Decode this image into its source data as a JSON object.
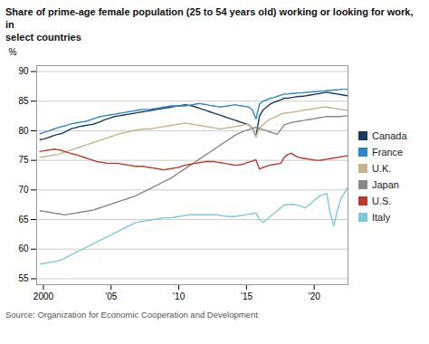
{
  "chart_data": {
    "type": "line",
    "title": "Share of prime-age female population (25 to 54 years old) working or looking for work, in\nselect countries",
    "source": "Source: Organization for Economic Cooperation and Development",
    "ylabel": "%",
    "xlim": [
      1999.5,
      2022.5
    ],
    "ylim": [
      54,
      91
    ],
    "xticks": [
      2000,
      {
        "value": 2005,
        "label": "’05"
      },
      {
        "value": 2010,
        "label": "’10"
      },
      {
        "value": 2015,
        "label": "’15"
      },
      {
        "value": 2020,
        "label": "’20"
      }
    ],
    "yticks": [
      55,
      60,
      65,
      70,
      75,
      80,
      85,
      90
    ],
    "grid": true,
    "legend": "right",
    "x": [
      1999.75,
      2000.0115,
      2000.273,
      2000.5345,
      2000.796,
      2001.0575,
      2001.319,
      2001.5805,
      2001.842,
      2002.1034,
      2002.3649,
      2002.6264,
      2002.8879,
      2003.1494,
      2003.4109,
      2003.6724,
      2003.9339,
      2004.1954,
      2004.4569,
      2004.7184,
      2004.9799,
      2005.2414,
      2005.5029,
      2005.7644,
      2006.0259,
      2006.2874,
      2006.5489,
      2006.8103,
      2007.0718,
      2007.3333,
      2007.5948,
      2007.8563,
      2008.1178,
      2008.3793,
      2008.6408,
      2008.9023,
      2009.1638,
      2009.4253,
      2009.6868,
      2009.9483,
      2010.2098,
      2010.4713,
      2010.7328,
      2010.9943,
      2011.2557,
      2011.5172,
      2011.7787,
      2012.0402,
      2012.3017,
      2012.5632,
      2012.8247,
      2013.0862,
      2013.3477,
      2013.6092,
      2013.8707,
      2014.1322,
      2014.3937,
      2014.6552,
      2014.9167,
      2015.1782,
      2015.4397,
      2015.7011,
      2015.9626,
      2016.2241,
      2016.4856,
      2016.7471,
      2017.0086,
      2017.2701,
      2017.5316,
      2017.7931,
      2018.0546,
      2018.3161,
      2018.5776,
      2018.8391,
      2019.1006,
      2019.3621,
      2019.6236,
      2019.8851,
      2020.1466,
      2020.408,
      2020.6695,
      2020.931,
      2021.1925,
      2021.454,
      2021.7155,
      2021.977,
      2022.2385,
      2022.5
    ],
    "series": [
      {
        "name": "Canada",
        "color": "#1a3a5c",
        "values": [
          78.5,
          78.6,
          78.8,
          79.0,
          79.2,
          79.4,
          79.5,
          79.8,
          80.1,
          80.4,
          80.5,
          80.7,
          80.8,
          80.9,
          81.0,
          81.1,
          81.3,
          81.5,
          81.8,
          82.0,
          82.2,
          82.4,
          82.5,
          82.6,
          82.7,
          82.8,
          82.9,
          83.0,
          83.1,
          83.2,
          83.3,
          83.4,
          83.5,
          83.6,
          83.7,
          83.8,
          83.9,
          84.0,
          84.1,
          84.2,
          84.3,
          84.4,
          84.3,
          84.2,
          84.0,
          83.8,
          83.6,
          83.4,
          83.2,
          83.0,
          82.8,
          82.6,
          82.4,
          82.2,
          82.0,
          81.8,
          81.6,
          81.4,
          81.2,
          81.0,
          80.5,
          79.0,
          82.5,
          83.5,
          84.0,
          84.5,
          84.8,
          85.0,
          85.2,
          85.5,
          85.5,
          85.6,
          85.7,
          85.8,
          85.8,
          85.9,
          86.0,
          86.1,
          86.2,
          86.3,
          86.4,
          86.5,
          86.4,
          86.3,
          86.2,
          86.1,
          86.0,
          85.9
        ]
      },
      {
        "name": "France",
        "color": "#2e86c8",
        "values": [
          79.5,
          79.7,
          79.9,
          80.1,
          80.3,
          80.5,
          80.7,
          80.8,
          81.0,
          81.2,
          81.3,
          81.4,
          81.5,
          81.6,
          81.8,
          82.0,
          82.2,
          82.4,
          82.5,
          82.6,
          82.7,
          82.8,
          82.9,
          83.0,
          83.1,
          83.2,
          83.3,
          83.4,
          83.5,
          83.6,
          83.6,
          83.6,
          83.7,
          83.8,
          83.9,
          84.0,
          84.1,
          84.2,
          84.2,
          84.2,
          84.2,
          84.2,
          84.3,
          84.4,
          84.5,
          84.6,
          84.5,
          84.4,
          84.3,
          84.2,
          84.1,
          84.0,
          84.1,
          84.2,
          84.3,
          84.4,
          84.3,
          84.2,
          84.1,
          84.0,
          83.5,
          82.0,
          84.5,
          85.0,
          85.2,
          85.5,
          85.6,
          85.8,
          86.0,
          86.2,
          86.2,
          86.3,
          86.3,
          86.4,
          86.4,
          86.5,
          86.5,
          86.6,
          86.6,
          86.7,
          86.7,
          86.8,
          86.8,
          86.9,
          86.9,
          87.0,
          87.0,
          87.0
        ]
      },
      {
        "name": "U.K.",
        "color": "#c8b48a",
        "values": [
          75.5,
          75.6,
          75.7,
          75.8,
          75.9,
          76.0,
          76.2,
          76.4,
          76.6,
          76.8,
          77.0,
          77.2,
          77.4,
          77.6,
          77.8,
          78.0,
          78.2,
          78.4,
          78.6,
          78.8,
          79.0,
          79.2,
          79.4,
          79.6,
          79.7,
          79.8,
          80.0,
          80.1,
          80.2,
          80.3,
          80.3,
          80.3,
          80.4,
          80.5,
          80.6,
          80.7,
          80.8,
          80.9,
          81.0,
          81.1,
          81.2,
          81.3,
          81.2,
          81.1,
          81.0,
          80.9,
          80.8,
          80.7,
          80.6,
          80.5,
          80.4,
          80.3,
          80.4,
          80.5,
          80.6,
          80.7,
          80.8,
          80.9,
          81.0,
          81.1,
          80.5,
          79.0,
          80.5,
          81.0,
          81.5,
          82.0,
          82.2,
          82.5,
          82.8,
          83.0,
          83.0,
          83.1,
          83.2,
          83.3,
          83.4,
          83.5,
          83.6,
          83.7,
          83.8,
          83.9,
          84.0,
          84.0,
          83.9,
          83.8,
          83.7,
          83.6,
          83.5,
          83.4
        ]
      },
      {
        "name": "Japan",
        "color": "#888888",
        "values": [
          66.5,
          66.4,
          66.3,
          66.2,
          66.1,
          66.0,
          65.9,
          65.8,
          65.9,
          66.0,
          66.1,
          66.2,
          66.3,
          66.4,
          66.5,
          66.6,
          66.8,
          67.0,
          67.2,
          67.4,
          67.6,
          67.8,
          68.0,
          68.2,
          68.4,
          68.6,
          68.8,
          69.0,
          69.3,
          69.6,
          69.9,
          70.2,
          70.5,
          70.8,
          71.1,
          71.4,
          71.7,
          72.0,
          72.4,
          72.8,
          73.2,
          73.6,
          74.0,
          74.4,
          74.8,
          75.2,
          75.6,
          76.0,
          76.4,
          76.8,
          77.2,
          77.6,
          78.0,
          78.4,
          78.8,
          79.2,
          79.5,
          79.8,
          80.0,
          80.2,
          80.4,
          80.6,
          80.4,
          80.2,
          80.0,
          79.8,
          79.6,
          79.4,
          80.2,
          81.0,
          81.2,
          81.4,
          81.5,
          81.6,
          81.7,
          81.8,
          81.9,
          82.0,
          82.1,
          82.2,
          82.3,
          82.4,
          82.4,
          82.4,
          82.4,
          82.4,
          82.5,
          82.5
        ]
      },
      {
        "name": "U.S.",
        "color": "#c0392b",
        "values": [
          76.5,
          76.6,
          76.7,
          76.8,
          76.9,
          76.8,
          76.7,
          76.5,
          76.3,
          76.1,
          76.0,
          75.8,
          75.6,
          75.4,
          75.2,
          75.0,
          74.8,
          74.7,
          74.6,
          74.5,
          74.5,
          74.5,
          74.5,
          74.4,
          74.3,
          74.2,
          74.1,
          74.0,
          74.0,
          74.0,
          73.9,
          73.8,
          73.7,
          73.6,
          73.5,
          73.4,
          73.5,
          73.6,
          73.7,
          73.8,
          74.0,
          74.2,
          74.3,
          74.4,
          74.5,
          74.6,
          74.7,
          74.8,
          74.8,
          74.8,
          74.7,
          74.6,
          74.5,
          74.4,
          74.3,
          74.2,
          74.2,
          74.3,
          74.5,
          74.7,
          74.9,
          75.1,
          73.5,
          73.8,
          74.0,
          74.2,
          74.3,
          74.4,
          74.5,
          75.5,
          76.0,
          76.2,
          75.8,
          75.5,
          75.4,
          75.3,
          75.2,
          75.1,
          75.0,
          75.0,
          75.1,
          75.2,
          75.3,
          75.4,
          75.5,
          75.6,
          75.7,
          75.8
        ]
      },
      {
        "name": "Italy",
        "color": "#7ec8e3",
        "values": [
          57.5,
          57.6,
          57.7,
          57.8,
          57.9,
          58.0,
          58.2,
          58.5,
          58.8,
          59.1,
          59.4,
          59.7,
          60.0,
          60.3,
          60.6,
          60.9,
          61.2,
          61.5,
          61.8,
          62.1,
          62.4,
          62.7,
          63.0,
          63.3,
          63.6,
          63.9,
          64.2,
          64.5,
          64.6,
          64.7,
          64.8,
          64.9,
          65.0,
          65.1,
          65.2,
          65.3,
          65.3,
          65.3,
          65.4,
          65.5,
          65.6,
          65.7,
          65.8,
          65.8,
          65.8,
          65.8,
          65.8,
          65.8,
          65.8,
          65.8,
          65.8,
          65.7,
          65.6,
          65.5,
          65.5,
          65.5,
          65.6,
          65.7,
          65.8,
          65.9,
          66.0,
          66.1,
          65.0,
          64.5,
          65.0,
          65.5,
          66.0,
          66.5,
          67.0,
          67.5,
          67.5,
          67.6,
          67.5,
          67.4,
          67.2,
          67.0,
          67.5,
          68.0,
          68.5,
          69.0,
          69.2,
          69.4,
          66.0,
          64.0,
          66.5,
          68.5,
          69.5,
          70.5
        ]
      }
    ]
  }
}
